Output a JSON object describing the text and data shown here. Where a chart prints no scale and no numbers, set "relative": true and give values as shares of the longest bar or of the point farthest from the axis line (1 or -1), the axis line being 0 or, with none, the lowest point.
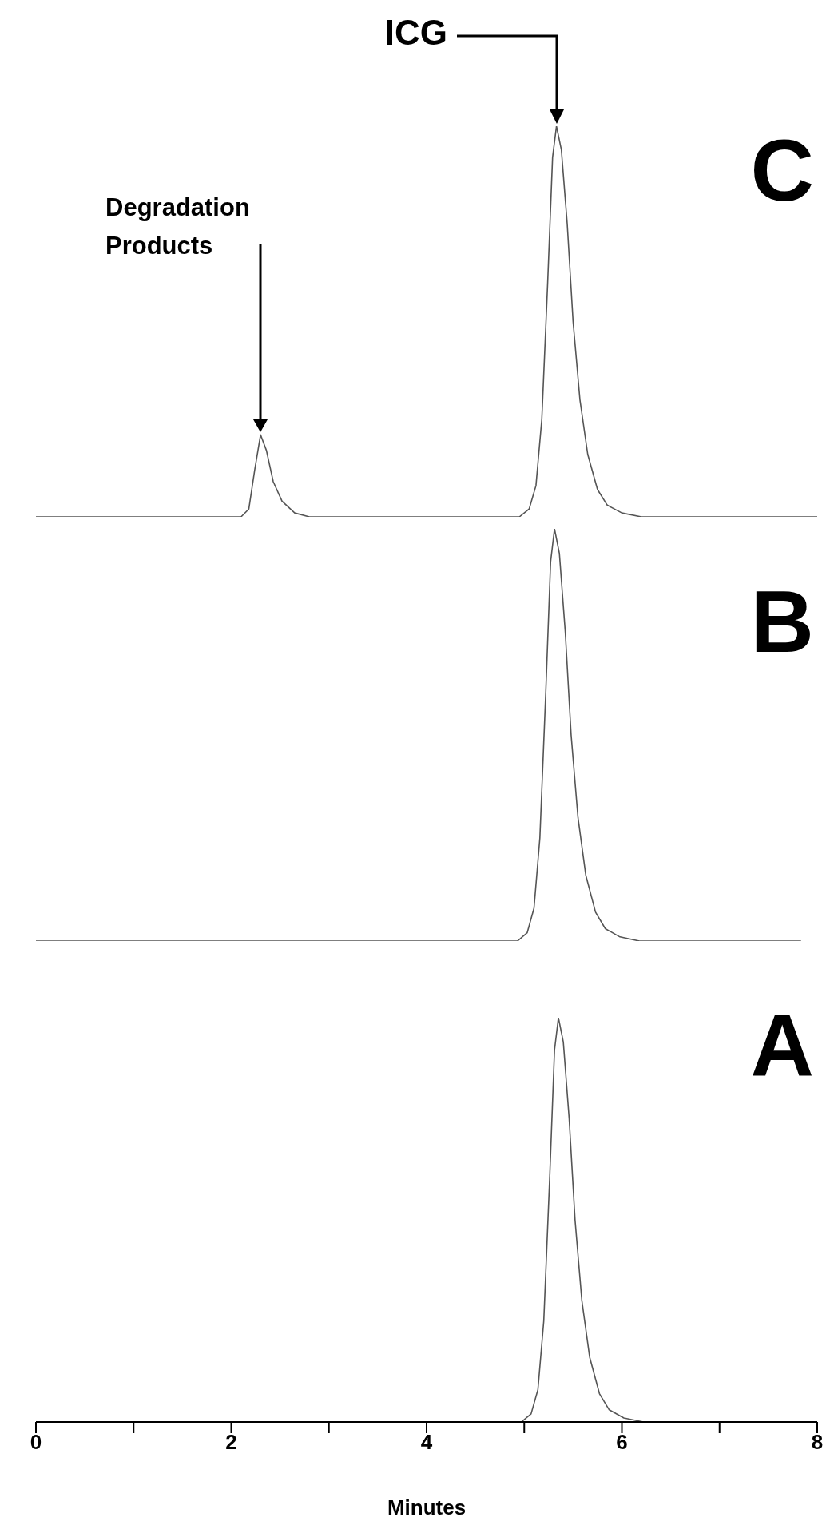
{
  "chart_data": [
    {
      "type": "line",
      "title": "C",
      "relative": true,
      "color": "#555555",
      "xlim": [
        0,
        8
      ],
      "tick_labels": false,
      "annotations": [
        "ICG",
        "Degradation Products"
      ],
      "x": [
        0,
        2.1,
        2.18,
        2.24,
        2.3,
        2.36,
        2.43,
        2.52,
        2.65,
        2.8,
        4.95,
        5.05,
        5.12,
        5.18,
        5.24,
        5.29,
        5.33,
        5.38,
        5.44,
        5.5,
        5.57,
        5.65,
        5.75,
        5.85,
        6.0,
        6.2,
        8
      ],
      "values": [
        0,
        0,
        0.02,
        0.12,
        0.21,
        0.17,
        0.09,
        0.04,
        0.01,
        0,
        0,
        0.02,
        0.08,
        0.25,
        0.6,
        0.92,
        1,
        0.94,
        0.75,
        0.5,
        0.3,
        0.16,
        0.07,
        0.03,
        0.01,
        0,
        0
      ]
    },
    {
      "type": "line",
      "title": "B",
      "relative": true,
      "color": "#555555",
      "xlim": [
        0,
        8
      ],
      "tick_labels": false,
      "x": [
        0,
        4.93,
        5.03,
        5.1,
        5.16,
        5.22,
        5.27,
        5.31,
        5.36,
        5.42,
        5.48,
        5.55,
        5.63,
        5.73,
        5.83,
        5.98,
        6.18,
        7.83
      ],
      "values": [
        0,
        0,
        0.02,
        0.08,
        0.25,
        0.6,
        0.92,
        1,
        0.94,
        0.75,
        0.5,
        0.3,
        0.16,
        0.07,
        0.03,
        0.01,
        0,
        0
      ]
    },
    {
      "type": "line",
      "title": "A",
      "xlabel": "Minutes",
      "relative": true,
      "color": "#555555",
      "xlim": [
        0,
        8
      ],
      "xticks": [
        0,
        {
          "value": 1,
          "label": null
        },
        2,
        {
          "value": 3,
          "label": null
        },
        4,
        {
          "value": 5,
          "label": null
        },
        6,
        {
          "value": 7,
          "label": null
        },
        8
      ],
      "tick_labels": "x",
      "x": [
        0,
        4.97,
        5.07,
        5.14,
        5.2,
        5.26,
        5.31,
        5.35,
        5.4,
        5.46,
        5.52,
        5.59,
        5.67,
        5.77,
        5.87,
        6.02,
        6.22,
        7.93
      ],
      "values": [
        0,
        0,
        0.02,
        0.08,
        0.25,
        0.6,
        0.92,
        1,
        0.94,
        0.75,
        0.5,
        0.3,
        0.16,
        0.07,
        0.03,
        0.01,
        0,
        0
      ]
    }
  ]
}
